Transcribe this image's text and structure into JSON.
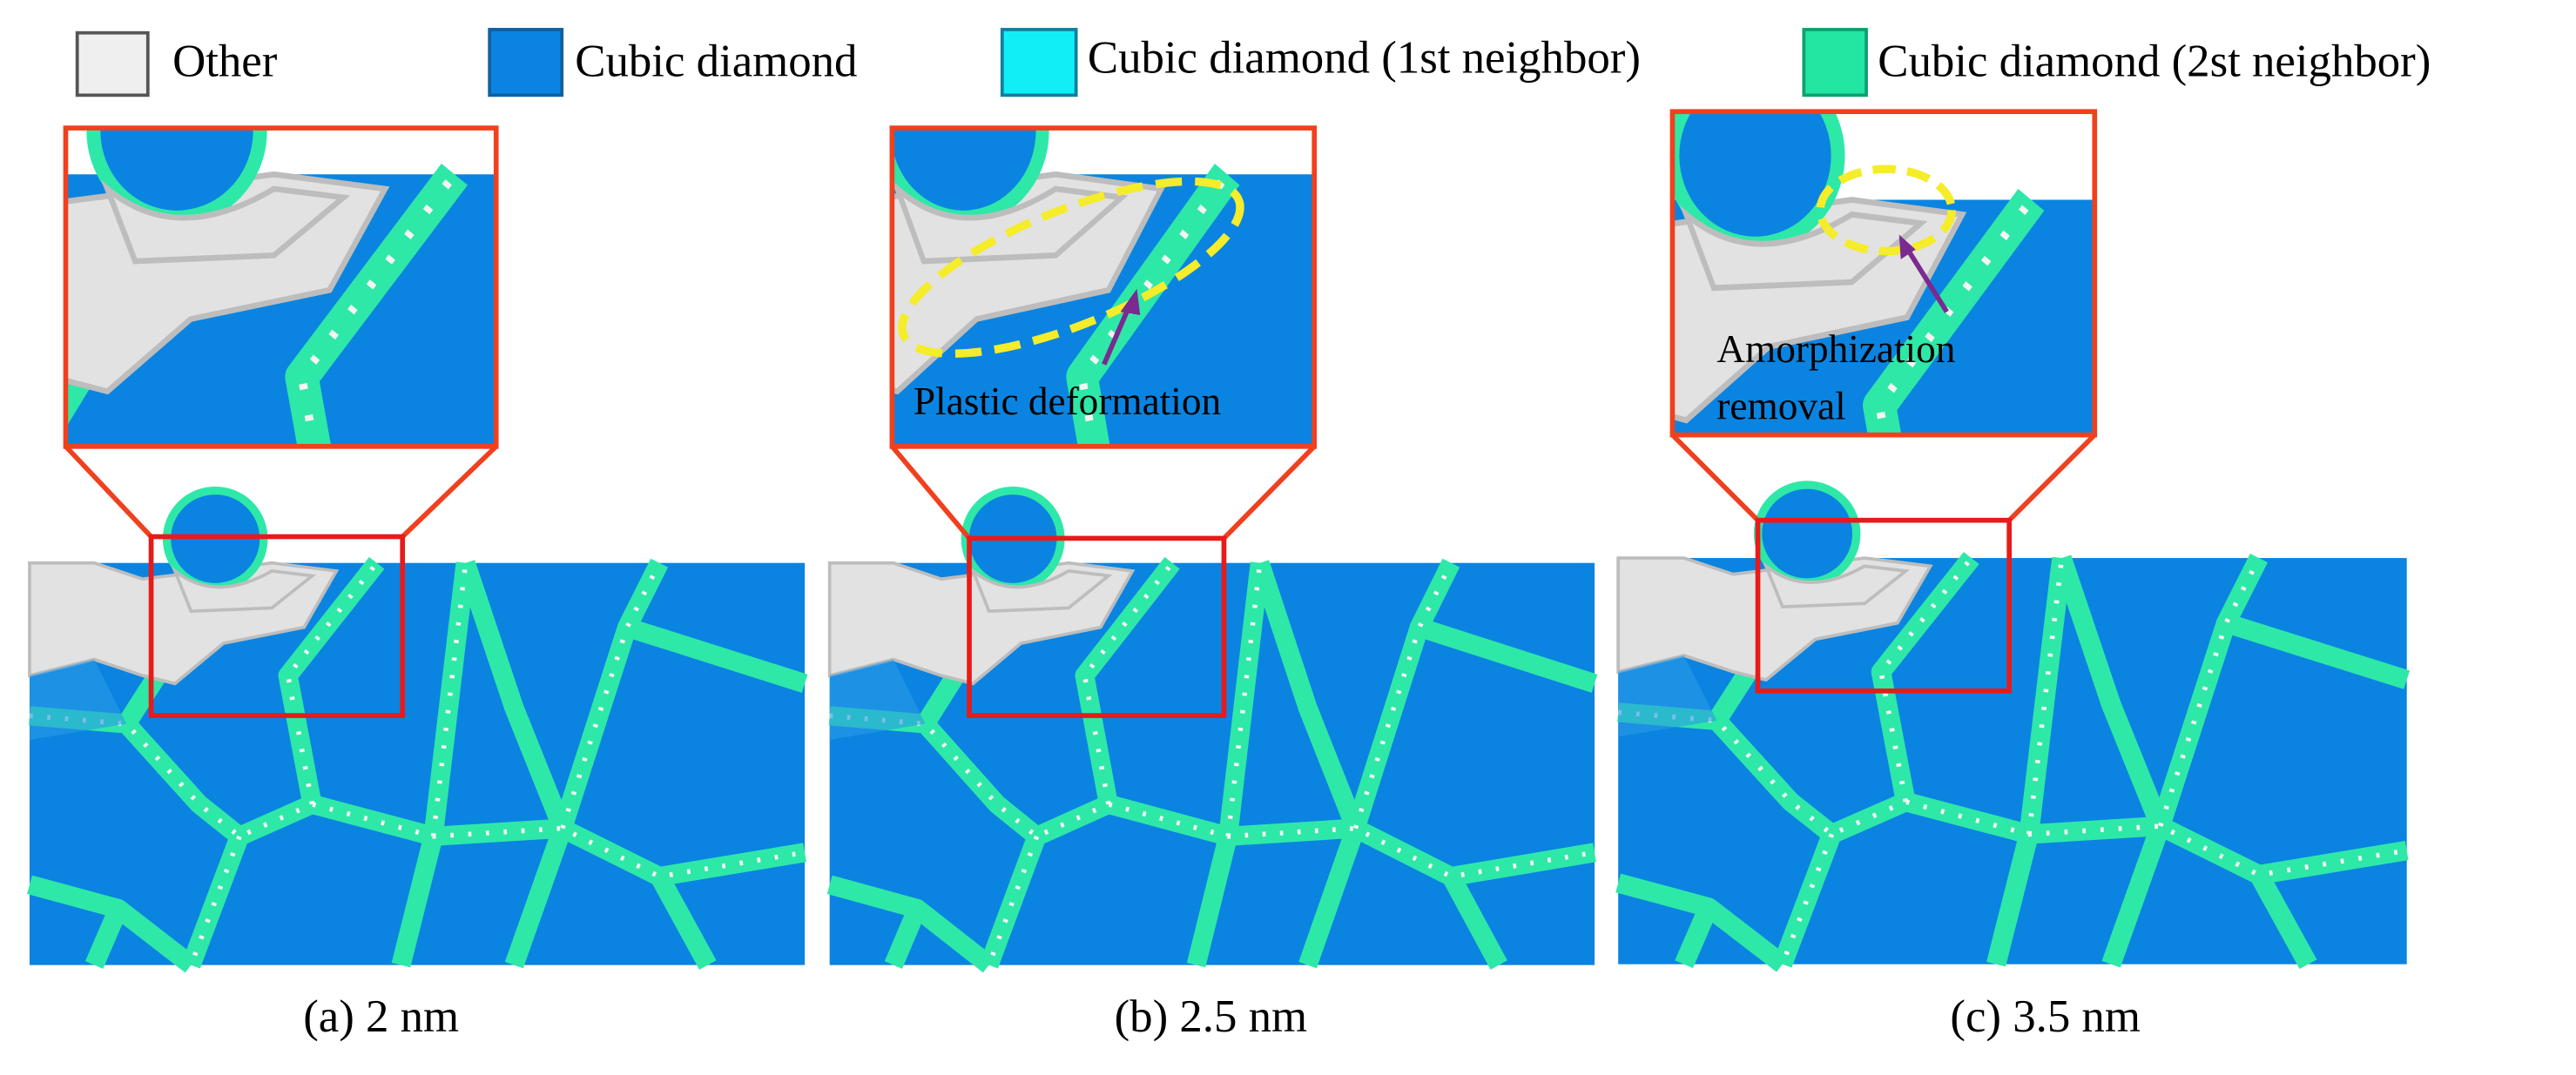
{
  "legend": [
    {
      "label": "Other",
      "color": "#efefef"
    },
    {
      "label": "Cubic diamond",
      "color": "#0a84e0"
    },
    {
      "label": "Cubic diamond (1st neighbor)",
      "color": "#12eef6"
    },
    {
      "label": "Cubic diamond (2st neighbor)",
      "color": "#22e6a2"
    }
  ],
  "panels": [
    {
      "caption": "(a) 2 nm"
    },
    {
      "caption": "(b) 2.5 nm",
      "annotation": "Plastic deformation"
    },
    {
      "caption": "(c) 3.5 nm",
      "annotation": [
        "Amorphization",
        "removal"
      ]
    }
  ]
}
